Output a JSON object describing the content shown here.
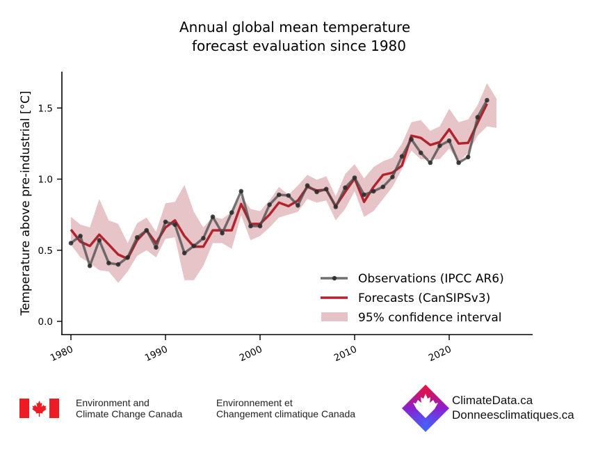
{
  "chart_data": {
    "type": "line",
    "title": [
      "Annual global mean temperature",
      "forecast evaluation since 1980"
    ],
    "xlabel": "",
    "ylabel": "Temperature above pre-industrial [°C]",
    "xlim": [
      1979.5,
      2028
    ],
    "ylim": [
      -0.05,
      1.75
    ],
    "xticks": [
      1980,
      1990,
      2000,
      2010,
      2020
    ],
    "yticks": [
      0.0,
      0.5,
      1.0,
      1.5
    ],
    "ytick_labels": [
      "0.0",
      "0.5",
      "1.0",
      "1.5"
    ],
    "grid": false,
    "legend_position": "bottom-right",
    "colors": {
      "observations": "#4d4d4d",
      "forecasts": "#b0242e",
      "confidence": "#d9a0a6"
    },
    "series": [
      {
        "name": "Observations (IPCC AR6)",
        "kind": "line-markers",
        "x": [
          1980,
          1981,
          1982,
          1983,
          1984,
          1985,
          1986,
          1987,
          1988,
          1989,
          1990,
          1991,
          1992,
          1993,
          1994,
          1995,
          1996,
          1997,
          1998,
          1999,
          2000,
          2001,
          2002,
          2003,
          2004,
          2005,
          2006,
          2007,
          2008,
          2009,
          2010,
          2011,
          2012,
          2013,
          2014,
          2015,
          2016,
          2017,
          2018,
          2019,
          2020,
          2021,
          2022,
          2023,
          2024
        ],
        "values": [
          0.55,
          0.6,
          0.39,
          0.57,
          0.41,
          0.4,
          0.45,
          0.59,
          0.64,
          0.52,
          0.7,
          0.68,
          0.48,
          0.53,
          0.585,
          0.735,
          0.62,
          0.765,
          0.915,
          0.67,
          0.67,
          0.82,
          0.89,
          0.885,
          0.815,
          0.955,
          0.91,
          0.93,
          0.805,
          0.94,
          1.01,
          0.89,
          0.915,
          0.945,
          1.015,
          1.16,
          1.28,
          1.185,
          1.115,
          1.235,
          1.27,
          1.115,
          1.155,
          1.435,
          1.555
        ]
      },
      {
        "name": "Forecasts (CanSIPSv3)",
        "kind": "line",
        "x": [
          1980,
          1981,
          1982,
          1983,
          1984,
          1985,
          1986,
          1987,
          1988,
          1989,
          1990,
          1991,
          1992,
          1993,
          1994,
          1995,
          1996,
          1997,
          1998,
          1999,
          2000,
          2001,
          2002,
          2003,
          2004,
          2005,
          2006,
          2007,
          2008,
          2009,
          2010,
          2011,
          2012,
          2013,
          2014,
          2015,
          2016,
          2017,
          2018,
          2019,
          2020,
          2021,
          2022,
          2023,
          2024
        ],
        "values": [
          0.645,
          0.56,
          0.53,
          0.61,
          0.54,
          0.47,
          0.44,
          0.57,
          0.64,
          0.55,
          0.66,
          0.71,
          0.6,
          0.525,
          0.525,
          0.64,
          0.64,
          0.64,
          0.825,
          0.685,
          0.685,
          0.75,
          0.835,
          0.81,
          0.85,
          0.945,
          0.92,
          0.925,
          0.81,
          0.91,
          1.005,
          0.84,
          0.945,
          1.03,
          1.045,
          1.095,
          1.305,
          1.29,
          1.24,
          1.26,
          1.35,
          1.25,
          1.255,
          1.395,
          1.53
        ]
      },
      {
        "name": "95% confidence interval",
        "kind": "band",
        "x": [
          1980,
          1981,
          1982,
          1983,
          1984,
          1985,
          1986,
          1987,
          1988,
          1989,
          1990,
          1991,
          1992,
          1993,
          1994,
          1995,
          1996,
          1997,
          1998,
          1999,
          2000,
          2001,
          2002,
          2003,
          2004,
          2005,
          2006,
          2007,
          2008,
          2009,
          2010,
          2011,
          2012,
          2013,
          2014,
          2015,
          2016,
          2017,
          2018,
          2019,
          2020,
          2021,
          2022,
          2023,
          2024,
          2025
        ],
        "upper": [
          0.735,
          0.68,
          0.66,
          0.86,
          0.71,
          0.685,
          0.55,
          0.69,
          0.73,
          0.63,
          0.83,
          0.84,
          0.96,
          0.77,
          0.66,
          0.735,
          0.72,
          0.77,
          0.88,
          0.79,
          0.775,
          0.85,
          0.945,
          0.89,
          0.955,
          1.03,
          0.995,
          1.02,
          0.88,
          1.035,
          1.105,
          1.005,
          1.085,
          1.125,
          1.15,
          1.25,
          1.4,
          1.415,
          1.34,
          1.37,
          1.495,
          1.4,
          1.42,
          1.52,
          1.675,
          1.565
        ],
        "lower": [
          0.54,
          0.45,
          0.41,
          0.36,
          0.35,
          0.27,
          0.35,
          0.46,
          0.5,
          0.45,
          0.58,
          0.59,
          0.29,
          0.29,
          0.39,
          0.55,
          0.55,
          0.51,
          0.745,
          0.57,
          0.6,
          0.66,
          0.73,
          0.75,
          0.77,
          0.86,
          0.835,
          0.85,
          0.71,
          0.79,
          0.915,
          0.735,
          0.775,
          0.86,
          0.945,
          1.07,
          1.2,
          1.14,
          1.14,
          1.14,
          1.215,
          1.12,
          1.185,
          1.305,
          1.37,
          1.36
        ]
      }
    ]
  },
  "footer": {
    "org_en": [
      "Environment and",
      "Climate Change Canada"
    ],
    "org_fr": [
      "Environnement et",
      "Changement climatique Canada"
    ],
    "site": [
      "ClimateData.ca",
      "Donneesclimatiques.ca"
    ],
    "icons": {
      "flag": "canada-flag-icon",
      "logo": "climatedata-logo-icon"
    },
    "colors": {
      "flag_red": "#ed1c24",
      "logo_top": "#ee1133",
      "logo_mid": "#8a1fd0",
      "logo_bottom": "#3a6cff"
    }
  }
}
